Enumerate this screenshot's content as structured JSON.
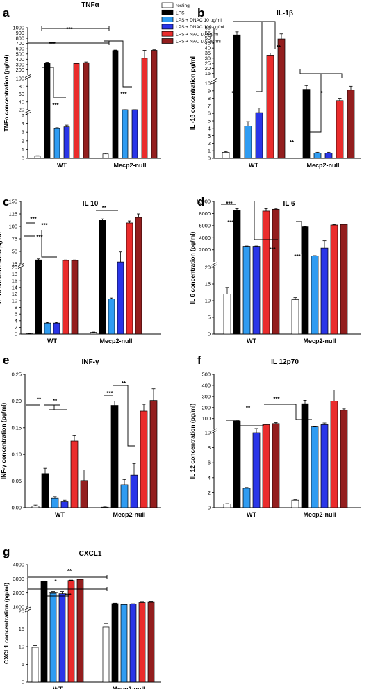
{
  "legend": {
    "entries": [
      {
        "label": "resting",
        "color": "#ffffff"
      },
      {
        "label": "LPS",
        "color": "#000000"
      },
      {
        "label": "LPS + DNAC 10 ug/ml",
        "color": "#2f9cf2"
      },
      {
        "label": "LPS + DNAC 100 ug/ml",
        "color": "#2a35e8"
      },
      {
        "label": "LPS + NAC 10 ug/ml",
        "color": "#ea2c2c"
      },
      {
        "label": "LPS + NAC 100 ug/ml",
        "color": "#931e1e"
      }
    ]
  },
  "chart_data": [
    {
      "panel": "a",
      "title": "TNFα",
      "type": "bar",
      "ylabel": "TNFα concentration (pg/ml)",
      "categories": [
        "WT",
        "Mecp2-null"
      ],
      "yaxis_segments": [
        {
          "range": [
            0,
            5
          ],
          "ticks": [
            0,
            1,
            2,
            3,
            4,
            5
          ]
        },
        {
          "range": [
            20,
            100
          ],
          "ticks": [
            20,
            40,
            60,
            80,
            100
          ]
        },
        {
          "range": [
            100,
            1000
          ],
          "ticks": [
            100,
            200,
            300,
            400,
            500,
            600,
            700,
            800,
            900,
            1000
          ]
        }
      ],
      "series": [
        {
          "name": "resting",
          "values": [
            0.25,
            0.5
          ],
          "errors": [
            0.05,
            0.1
          ]
        },
        {
          "name": "LPS",
          "values": [
            330,
            565
          ],
          "errors": [
            15,
            10
          ]
        },
        {
          "name": "LPS + DNAC 10 ug/ml",
          "values": [
            3.4,
            15
          ],
          "errors": [
            0.1,
            1
          ]
        },
        {
          "name": "LPS + DNAC 100 ug/ml",
          "values": [
            3.6,
            15
          ],
          "errors": [
            0.2,
            1
          ]
        },
        {
          "name": "LPS + NAC 10 ug/ml",
          "values": [
            320,
            420
          ],
          "errors": [
            5,
            150
          ]
        },
        {
          "name": "LPS + NAC 100 ug/ml",
          "values": [
            335,
            570
          ],
          "errors": [
            15,
            10
          ]
        }
      ],
      "annotations": [
        "***",
        "***",
        "***",
        "***"
      ]
    },
    {
      "panel": "b",
      "title": "IL-1β",
      "type": "bar",
      "ylabel": "IL -1β concentration pg/ml",
      "categories": [
        "WT",
        "Mecp2-null"
      ],
      "yaxis_segments": [
        {
          "range": [
            0,
            10
          ],
          "ticks": [
            0,
            1,
            2,
            3,
            4,
            5,
            6,
            7,
            8,
            9,
            10
          ]
        },
        {
          "range": [
            10,
            60
          ],
          "ticks": [
            10,
            15,
            20,
            25,
            30,
            35,
            40,
            45,
            50,
            55,
            60
          ]
        }
      ],
      "series": [
        {
          "name": "resting",
          "values": [
            0.8,
            0
          ],
          "errors": [
            0.1,
            0
          ]
        },
        {
          "name": "LPS",
          "values": [
            53,
            9.2
          ],
          "errors": [
            3,
            0.5
          ]
        },
        {
          "name": "LPS + DNAC 10 ug/ml",
          "values": [
            4.3,
            0.7
          ],
          "errors": [
            0.6,
            0.1
          ]
        },
        {
          "name": "LPS + DNAC 100 ug/ml",
          "values": [
            6.1,
            0.7
          ],
          "errors": [
            0.6,
            0.1
          ]
        },
        {
          "name": "LPS + NAC 10 ug/ml",
          "values": [
            33,
            7.7
          ],
          "errors": [
            2,
            0.3
          ]
        },
        {
          "name": "LPS + NAC 100 ug/ml",
          "values": [
            49,
            9.1
          ],
          "errors": [
            5,
            0.5
          ]
        }
      ],
      "annotations": [
        "***",
        "**",
        "**",
        "*"
      ]
    },
    {
      "panel": "c",
      "title": "IL 10",
      "type": "bar",
      "ylabel": "IL 10 concentration pg/ml",
      "categories": [
        "WT",
        "Mecp2-null"
      ],
      "yaxis_segments": [
        {
          "range": [
            0,
            20
          ],
          "ticks": [
            0,
            2,
            4,
            6,
            8,
            10,
            12,
            14,
            16,
            18,
            20
          ]
        },
        {
          "range": [
            25,
            150
          ],
          "ticks": [
            25,
            50,
            75,
            100,
            125,
            150
          ]
        }
      ],
      "series": [
        {
          "name": "resting",
          "values": [
            0.1,
            0.5
          ],
          "errors": [
            0.05,
            0.1
          ]
        },
        {
          "name": "LPS",
          "values": [
            33,
            112
          ],
          "errors": [
            2,
            3
          ]
        },
        {
          "name": "LPS + DNAC 10 ug/ml",
          "values": [
            3.3,
            10.5
          ],
          "errors": [
            0.2,
            0.3
          ]
        },
        {
          "name": "LPS + DNAC 100 ug/ml",
          "values": [
            3.3,
            29
          ],
          "errors": [
            0.2,
            20
          ]
        },
        {
          "name": "LPS + NAC 10 ug/ml",
          "values": [
            32,
            107
          ],
          "errors": [
            1,
            4
          ]
        },
        {
          "name": "LPS + NAC 100 ug/ml",
          "values": [
            32,
            118
          ],
          "errors": [
            1,
            7
          ]
        }
      ],
      "annotations": [
        "***",
        "***",
        "***",
        "**"
      ]
    },
    {
      "panel": "d",
      "title": "IL 6",
      "type": "bar",
      "ylabel": "IL 6 concentration (pg/ml)",
      "categories": [
        "WT",
        "Mecp2-null"
      ],
      "yaxis_segments": [
        {
          "range": [
            0,
            20
          ],
          "ticks": [
            0,
            5,
            10,
            15,
            20
          ]
        },
        {
          "range": [
            20,
            10000
          ],
          "ticks": [
            2000,
            4000,
            6000,
            8000,
            10000
          ]
        }
      ],
      "series": [
        {
          "name": "resting",
          "values": [
            12,
            10.3
          ],
          "errors": [
            2,
            0.6
          ]
        },
        {
          "name": "LPS",
          "values": [
            8500,
            5800
          ],
          "errors": [
            300,
            50
          ]
        },
        {
          "name": "LPS + DNAC 10 ug/ml",
          "values": [
            2600,
            1000
          ],
          "errors": [
            50,
            50
          ]
        },
        {
          "name": "LPS + DNAC 100 ug/ml",
          "values": [
            2600,
            2300
          ],
          "errors": [
            50,
            1200
          ]
        },
        {
          "name": "LPS + NAC 10 ug/ml",
          "values": [
            8400,
            6100
          ],
          "errors": [
            400,
            100
          ]
        },
        {
          "name": "LPS + NAC 100 ug/ml",
          "values": [
            8700,
            6200
          ],
          "errors": [
            150,
            60
          ]
        }
      ],
      "annotations": [
        "***",
        "***",
        "***",
        "***"
      ]
    },
    {
      "panel": "e",
      "title": "INF-γ",
      "type": "bar",
      "ylabel": "INF-γ concentration (pg/ml)",
      "categories": [
        "WT",
        "Mecp2-null"
      ],
      "ylim": [
        0,
        0.25
      ],
      "yticks": [
        "0.00",
        "0.05",
        "0.10",
        "0.15",
        "0.20",
        "0.25"
      ],
      "series": [
        {
          "name": "resting",
          "values": [
            0.003,
            0.001
          ],
          "errors": [
            0.002,
            0.0005
          ]
        },
        {
          "name": "LPS",
          "values": [
            0.064,
            0.192
          ],
          "errors": [
            0.01,
            0.008
          ]
        },
        {
          "name": "LPS + DNAC 10 ug/ml",
          "values": [
            0.018,
            0.043
          ],
          "errors": [
            0.003,
            0.01
          ]
        },
        {
          "name": "LPS + DNAC 100 ug/ml",
          "values": [
            0.011,
            0.061
          ],
          "errors": [
            0.003,
            0.022
          ]
        },
        {
          "name": "LPS + NAC 10 ug/ml",
          "values": [
            0.125,
            0.181
          ],
          "errors": [
            0.01,
            0.013
          ]
        },
        {
          "name": "LPS + NAC 100 ug/ml",
          "values": [
            0.051,
            0.201
          ],
          "errors": [
            0.02,
            0.022
          ]
        }
      ],
      "annotations": [
        "**",
        "**",
        "***",
        "**"
      ]
    },
    {
      "panel": "f",
      "title": "IL 12p70",
      "type": "bar",
      "ylabel": "IL 12 concentration (pg/ml)",
      "categories": [
        "WT",
        "Mecp2-null"
      ],
      "yaxis_segments": [
        {
          "range": [
            0,
            10
          ],
          "ticks": [
            0,
            2,
            4,
            6,
            8,
            10
          ]
        },
        {
          "range": [
            10,
            500
          ],
          "ticks": [
            100,
            200,
            300,
            400,
            500
          ]
        }
      ],
      "series": [
        {
          "name": "resting",
          "values": [
            0.5,
            1.0
          ],
          "errors": [
            0.05,
            0.05
          ]
        },
        {
          "name": "LPS",
          "values": [
            78,
            235
          ],
          "errors": [
            8,
            30
          ]
        },
        {
          "name": "LPS + DNAC 10 ug/ml",
          "values": [
            2.6,
            25
          ],
          "errors": [
            0.1,
            3
          ]
        },
        {
          "name": "LPS + DNAC 100 ug/ml",
          "values": [
            10,
            45
          ],
          "errors": [
            0.2,
            15
          ]
        },
        {
          "name": "LPS + NAC 10 ug/ml",
          "values": [
            45,
            258
          ],
          "errors": [
            5,
            100
          ]
        },
        {
          "name": "LPS + NAC 100 ug/ml",
          "values": [
            55,
            175
          ],
          "errors": [
            8,
            12
          ]
        }
      ],
      "annotations": [
        "**",
        "***"
      ]
    },
    {
      "panel": "g",
      "title": "CXCL1",
      "type": "bar",
      "ylabel": "CXCL1 concentration (pg/ml)",
      "categories": [
        "WT",
        "Mecp2-null"
      ],
      "yaxis_segments": [
        {
          "range": [
            0,
            20
          ],
          "ticks": [
            0,
            5,
            10,
            15,
            20
          ]
        },
        {
          "range": [
            1000,
            4000
          ],
          "ticks": [
            1000,
            2000,
            3000,
            4000
          ]
        }
      ],
      "series": [
        {
          "name": "resting",
          "values": [
            9.8,
            15.5
          ],
          "errors": [
            0.5,
            1
          ]
        },
        {
          "name": "LPS",
          "values": [
            2820,
            1250
          ],
          "errors": [
            30,
            30
          ]
        },
        {
          "name": "LPS + DNAC 10 ug/ml",
          "values": [
            1980,
            1180
          ],
          "errors": [
            120,
            20
          ]
        },
        {
          "name": "LPS + DNAC 100 ug/ml",
          "values": [
            1950,
            1220
          ],
          "errors": [
            150,
            20
          ]
        },
        {
          "name": "LPS + NAC 10 ug/ml",
          "values": [
            2880,
            1320
          ],
          "errors": [
            30,
            30
          ]
        },
        {
          "name": "LPS + NAC 100 ug/ml",
          "values": [
            2960,
            1340
          ],
          "errors": [
            30,
            30
          ]
        }
      ],
      "annotations": [
        "**",
        "*",
        "***"
      ]
    }
  ]
}
